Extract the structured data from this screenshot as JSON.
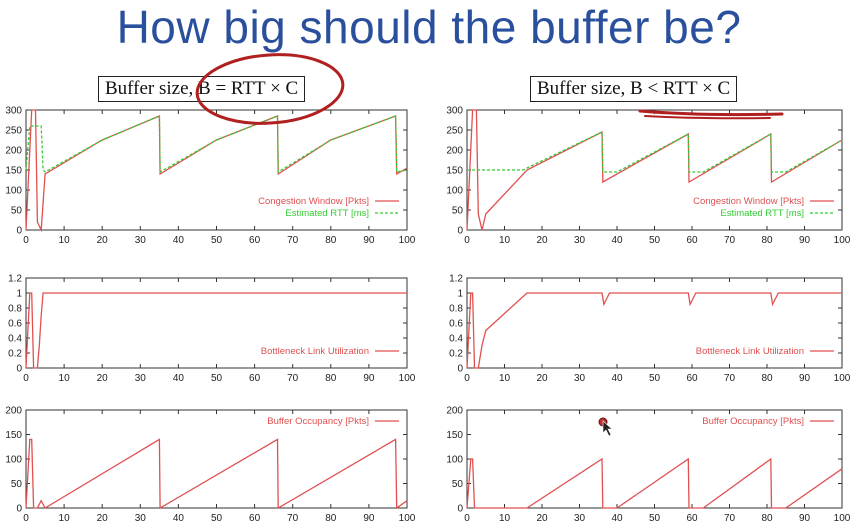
{
  "slide": {
    "title": "How big should the buffer be?",
    "caption_left": "Buffer size, B = RTT × C",
    "caption_right": "Buffer size, B < RTT × C"
  },
  "colors": {
    "title": "#2a4f9c",
    "cwnd_series": "#e05050",
    "rtt_series": "#33cc33",
    "annotation_ink": "#b02020"
  },
  "chart_data": [
    {
      "type": "line",
      "panel": "left-top",
      "xlim": [
        0,
        100
      ],
      "ylim": [
        0,
        300
      ],
      "xticks": [
        0,
        10,
        20,
        30,
        40,
        50,
        60,
        70,
        80,
        90,
        100
      ],
      "yticks": [
        0,
        50,
        100,
        150,
        200,
        250,
        300
      ],
      "legend_position": "bottom-right",
      "series": [
        {
          "name": "Congestion Window [Pkts]",
          "style": "solid",
          "x": [
            0,
            1.5,
            2,
            2.5,
            3,
            4,
            5,
            20,
            35,
            35.2,
            50,
            66,
            66.2,
            80,
            97,
            97.3,
            100
          ],
          "y": [
            0,
            300,
            300,
            300,
            20,
            0,
            140,
            225,
            285,
            140,
            225,
            285,
            140,
            225,
            285,
            140,
            155
          ]
        },
        {
          "name": "Estimated RTT    [ms]",
          "style": "dashed",
          "x": [
            0,
            1,
            2,
            3,
            4,
            4.5,
            5,
            20,
            35,
            35.2,
            50,
            66,
            66.2,
            80,
            97,
            97.3,
            100
          ],
          "y": [
            150,
            260,
            260,
            260,
            260,
            150,
            145,
            225,
            285,
            145,
            225,
            285,
            145,
            225,
            285,
            145,
            150
          ]
        }
      ]
    },
    {
      "type": "line",
      "panel": "left-mid",
      "xlim": [
        0,
        100
      ],
      "ylim": [
        0,
        1.2
      ],
      "xticks": [
        0,
        10,
        20,
        30,
        40,
        50,
        60,
        70,
        80,
        90,
        100
      ],
      "yticks": [
        0,
        0.2,
        0.4,
        0.6,
        0.8,
        1,
        1.2
      ],
      "legend_position": "bottom-right",
      "series": [
        {
          "name": "Bottleneck Link Utilization",
          "style": "solid",
          "x": [
            0,
            1,
            1.5,
            2,
            3,
            3.5,
            4,
            4.5,
            100
          ],
          "y": [
            0,
            1,
            1,
            0,
            0,
            0.3,
            0.7,
            1,
            1
          ]
        }
      ]
    },
    {
      "type": "line",
      "panel": "left-bottom",
      "xlim": [
        0,
        100
      ],
      "ylim": [
        0,
        200
      ],
      "xticks": [
        0,
        10,
        20,
        30,
        40,
        50,
        60,
        70,
        80,
        90,
        100
      ],
      "yticks": [
        0,
        50,
        100,
        150,
        200
      ],
      "legend_position": "top-right",
      "series": [
        {
          "name": "Buffer Occupancy [Pkts]",
          "style": "solid",
          "x": [
            0,
            1,
            1.5,
            2,
            3,
            4,
            5,
            35,
            35.2,
            66,
            66.2,
            97,
            97.3,
            100
          ],
          "y": [
            0,
            140,
            140,
            0,
            0,
            15,
            0,
            140,
            0,
            140,
            0,
            140,
            0,
            15
          ]
        }
      ]
    },
    {
      "type": "line",
      "panel": "right-top",
      "xlim": [
        0,
        100
      ],
      "ylim": [
        0,
        300
      ],
      "xticks": [
        0,
        10,
        20,
        30,
        40,
        50,
        60,
        70,
        80,
        90,
        100
      ],
      "yticks": [
        0,
        50,
        100,
        150,
        200,
        250,
        300
      ],
      "legend_position": "bottom-right",
      "series": [
        {
          "name": "Congestion Window [Pkts]",
          "style": "solid",
          "x": [
            0,
            1.5,
            2,
            2.5,
            3,
            4,
            5,
            16,
            36,
            36.2,
            59,
            59.2,
            81,
            81.2,
            100
          ],
          "y": [
            0,
            300,
            300,
            300,
            40,
            0,
            40,
            150,
            245,
            120,
            240,
            120,
            240,
            120,
            225
          ]
        },
        {
          "name": "Estimated RTT    [ms]",
          "style": "dashed",
          "x": [
            0,
            1,
            3,
            5,
            15,
            16,
            36,
            36.2,
            40,
            59,
            59.2,
            63,
            81,
            81.2,
            85,
            100
          ],
          "y": [
            150,
            150,
            150,
            150,
            150,
            155,
            245,
            145,
            145,
            240,
            145,
            145,
            240,
            145,
            145,
            225
          ]
        }
      ]
    },
    {
      "type": "line",
      "panel": "right-mid",
      "xlim": [
        0,
        100
      ],
      "ylim": [
        0,
        1.2
      ],
      "xticks": [
        0,
        10,
        20,
        30,
        40,
        50,
        60,
        70,
        80,
        90,
        100
      ],
      "yticks": [
        0,
        0.2,
        0.4,
        0.6,
        0.8,
        1,
        1.2
      ],
      "legend_position": "bottom-right",
      "series": [
        {
          "name": "Bottleneck Link Utilization",
          "style": "solid",
          "x": [
            0,
            1,
            1.5,
            2,
            3,
            4,
            5,
            16,
            36,
            36.5,
            37,
            38,
            59,
            59.5,
            60,
            61,
            81,
            81.5,
            82,
            83,
            100
          ],
          "y": [
            0,
            1,
            1,
            0,
            0,
            0.3,
            0.5,
            1,
            1,
            0.85,
            0.9,
            1,
            1,
            0.85,
            0.9,
            1,
            1,
            0.85,
            0.9,
            1,
            1
          ]
        }
      ]
    },
    {
      "type": "line",
      "panel": "right-bottom",
      "xlim": [
        0,
        100
      ],
      "ylim": [
        0,
        200
      ],
      "xticks": [
        0,
        10,
        20,
        30,
        40,
        50,
        60,
        70,
        80,
        90,
        100
      ],
      "yticks": [
        0,
        50,
        100,
        150,
        200
      ],
      "legend_position": "top-right",
      "series": [
        {
          "name": "Buffer Occupancy [Pkts]",
          "style": "solid",
          "x": [
            0,
            1,
            1.5,
            2,
            16,
            36,
            36.2,
            40,
            59,
            59.2,
            63,
            81,
            81.2,
            85,
            100
          ],
          "y": [
            0,
            100,
            100,
            0,
            0,
            100,
            0,
            0,
            100,
            0,
            0,
            100,
            0,
            0,
            80
          ]
        }
      ]
    }
  ]
}
